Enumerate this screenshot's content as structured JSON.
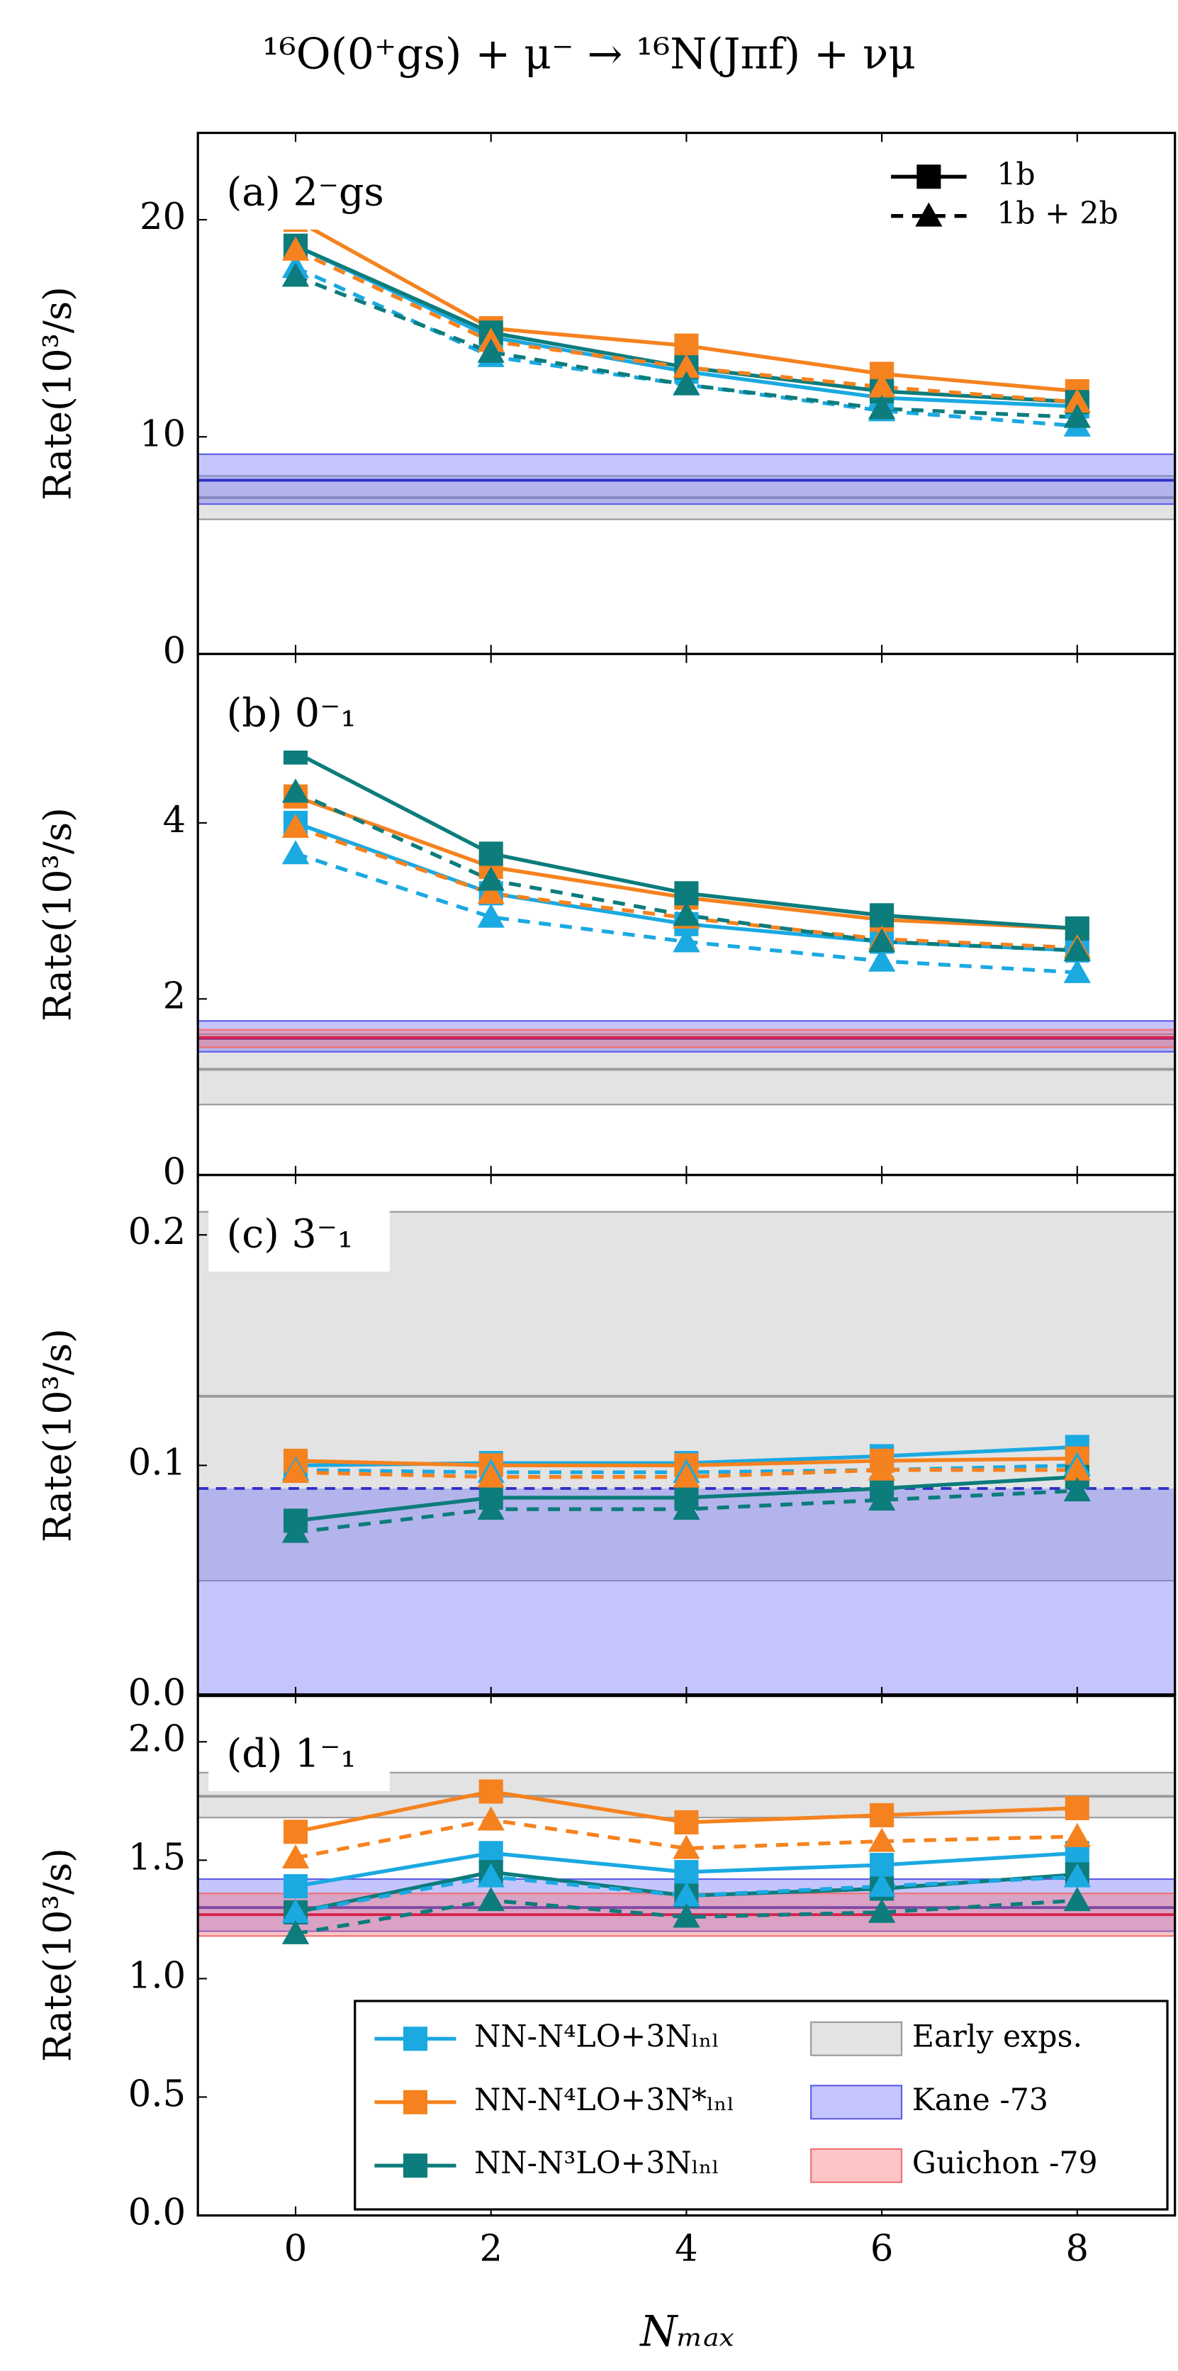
{
  "title": "¹⁶O(0⁺gs) + μ⁻ → ¹⁶N(Jπf) + νμ",
  "xlabel": "Nₘₐₓ",
  "legend": {
    "series": [
      {
        "name": "NN-N⁴LO+3Nₗₙₗ",
        "color": "#1ba9e1"
      },
      {
        "name": "NN-N⁴LO+3N*ₗₙₗ",
        "color": "#f5821f"
      },
      {
        "name": "NN-N³LO+3Nₗₙₗ",
        "color": "#0c7c7c"
      }
    ],
    "bands": [
      {
        "name": "Early exps.",
        "color": "#d9d9d9"
      },
      {
        "name": "Kane -73",
        "color": "#8c8cf5"
      },
      {
        "name": "Guichon -79",
        "color": "#f7a0a0"
      }
    ],
    "styles": [
      "1b",
      "1b + 2b"
    ]
  },
  "chart_data": [
    {
      "type": "line",
      "label": "(a) 2⁻gs",
      "ylabel": "Rate(10³/s)",
      "x": [
        0,
        2,
        4,
        6,
        8
      ],
      "xlim": [
        -1,
        9
      ],
      "xticks": [
        0,
        2,
        4,
        6,
        8
      ],
      "ylim": [
        0,
        24
      ],
      "yticks": [
        0,
        10,
        20
      ],
      "bands": [
        {
          "color": "#d9d9d9",
          "low": 6.2,
          "mid": 7.2,
          "high": 8.2
        },
        {
          "color": "#8c8cf5",
          "low": 6.9,
          "mid": 8.0,
          "high": 9.2
        }
      ],
      "series": [
        {
          "color": "#1ba9e1",
          "dashed": false,
          "values": [
            18.8,
            14.6,
            13.0,
            11.8,
            11.4
          ]
        },
        {
          "color": "#f5821f",
          "dashed": false,
          "values": [
            20.0,
            15.0,
            14.2,
            12.9,
            12.1
          ]
        },
        {
          "color": "#0c7c7c",
          "dashed": false,
          "values": [
            18.8,
            14.8,
            13.2,
            12.1,
            11.6
          ]
        },
        {
          "color": "#1ba9e1",
          "dashed": true,
          "values": [
            17.8,
            13.7,
            12.4,
            11.2,
            10.5
          ]
        },
        {
          "color": "#f5821f",
          "dashed": true,
          "values": [
            18.6,
            14.4,
            13.2,
            12.3,
            11.6
          ]
        },
        {
          "color": "#0c7c7c",
          "dashed": true,
          "values": [
            17.4,
            13.9,
            12.4,
            11.3,
            10.9
          ]
        }
      ]
    },
    {
      "type": "line",
      "label": "(b) 0⁻₁",
      "ylabel": "Rate(10³/s)",
      "x": [
        0,
        2,
        4,
        6,
        8
      ],
      "xlim": [
        -1,
        9
      ],
      "xticks": [
        0,
        2,
        4,
        6,
        8
      ],
      "ylim": [
        0,
        5.92
      ],
      "yticks": [
        0,
        2,
        4
      ],
      "bands": [
        {
          "color": "#d9d9d9",
          "low": 0.8,
          "mid": 1.2,
          "high": 1.6
        },
        {
          "color": "#8c8cf5",
          "low": 1.4,
          "mid": 1.55,
          "high": 1.75
        },
        {
          "color": "#f7a0a0",
          "low": 1.45,
          "mid": 1.56,
          "high": 1.65
        }
      ],
      "series": [
        {
          "color": "#1ba9e1",
          "dashed": false,
          "values": [
            4.0,
            3.2,
            2.85,
            2.65,
            2.55
          ]
        },
        {
          "color": "#f5821f",
          "dashed": false,
          "values": [
            4.3,
            3.5,
            3.15,
            2.9,
            2.8
          ]
        },
        {
          "color": "#0c7c7c",
          "dashed": false,
          "values": [
            4.8,
            3.65,
            3.2,
            2.95,
            2.8
          ]
        },
        {
          "color": "#1ba9e1",
          "dashed": true,
          "values": [
            3.65,
            2.93,
            2.65,
            2.43,
            2.3
          ]
        },
        {
          "color": "#f5821f",
          "dashed": true,
          "values": [
            3.95,
            3.2,
            2.92,
            2.68,
            2.58
          ]
        },
        {
          "color": "#0c7c7c",
          "dashed": true,
          "values": [
            4.35,
            3.35,
            2.95,
            2.65,
            2.55
          ]
        }
      ]
    },
    {
      "type": "line",
      "label": "(c) 3⁻₁",
      "ylabel": "Rate(10³/s)",
      "x": [
        0,
        2,
        4,
        6,
        8
      ],
      "xlim": [
        -1,
        9
      ],
      "xticks": [
        0,
        2,
        4,
        6,
        8
      ],
      "ylim": [
        0,
        0.226
      ],
      "yticks": [
        {
          "value": 0,
          "label": "0.0"
        },
        0.1,
        0.2
      ],
      "bands": [
        {
          "color": "#d9d9d9",
          "low": 0.05,
          "mid": 0.13,
          "high": 0.21
        },
        {
          "color": "#8c8cf5",
          "low": 0,
          "mid": 0.09,
          "high": 0.09,
          "dashed": true
        }
      ],
      "series": [
        {
          "color": "#1ba9e1",
          "dashed": false,
          "values": [
            0.1,
            0.101,
            0.101,
            0.104,
            0.108
          ]
        },
        {
          "color": "#f5821f",
          "dashed": false,
          "values": [
            0.102,
            0.1,
            0.1,
            0.102,
            0.103
          ]
        },
        {
          "color": "#0c7c7c",
          "dashed": false,
          "values": [
            0.076,
            0.086,
            0.086,
            0.09,
            0.095
          ]
        },
        {
          "color": "#1ba9e1",
          "dashed": true,
          "values": [
            0.098,
            0.097,
            0.097,
            0.098,
            0.1
          ]
        },
        {
          "color": "#f5821f",
          "dashed": true,
          "values": [
            0.097,
            0.095,
            0.095,
            0.098,
            0.098
          ]
        },
        {
          "color": "#0c7c7c",
          "dashed": true,
          "values": [
            0.071,
            0.081,
            0.081,
            0.085,
            0.089
          ]
        }
      ]
    },
    {
      "type": "line",
      "label": "(d) 1⁻₁",
      "ylabel": "Rate(10³/s)",
      "x": [
        0,
        2,
        4,
        6,
        8
      ],
      "xlim": [
        -1,
        9
      ],
      "xticks": [
        0,
        2,
        4,
        6,
        8
      ],
      "ylim": [
        0,
        2.2
      ],
      "yticks": [
        {
          "value": 0,
          "label": "0.0"
        },
        0.5,
        {
          "value": 1,
          "label": "1.0"
        },
        1.5,
        {
          "value": 2,
          "label": "2.0"
        }
      ],
      "bands": [
        {
          "color": "#d9d9d9",
          "low": 1.68,
          "mid": 1.77,
          "high": 1.87
        },
        {
          "color": "#8c8cf5",
          "low": 1.2,
          "mid": 1.3,
          "high": 1.42
        },
        {
          "color": "#f7a0a0",
          "low": 1.18,
          "mid": 1.27,
          "high": 1.36
        }
      ],
      "series": [
        {
          "color": "#1ba9e1",
          "dashed": false,
          "values": [
            1.39,
            1.53,
            1.45,
            1.48,
            1.53
          ]
        },
        {
          "color": "#f5821f",
          "dashed": false,
          "values": [
            1.62,
            1.79,
            1.66,
            1.69,
            1.72
          ]
        },
        {
          "color": "#0c7c7c",
          "dashed": false,
          "values": [
            1.28,
            1.45,
            1.35,
            1.38,
            1.44
          ]
        },
        {
          "color": "#1ba9e1",
          "dashed": true,
          "values": [
            1.28,
            1.43,
            1.35,
            1.39,
            1.43
          ]
        },
        {
          "color": "#f5821f",
          "dashed": true,
          "values": [
            1.51,
            1.67,
            1.55,
            1.58,
            1.6
          ]
        },
        {
          "color": "#0c7c7c",
          "dashed": true,
          "values": [
            1.19,
            1.33,
            1.26,
            1.28,
            1.33
          ]
        }
      ]
    }
  ]
}
